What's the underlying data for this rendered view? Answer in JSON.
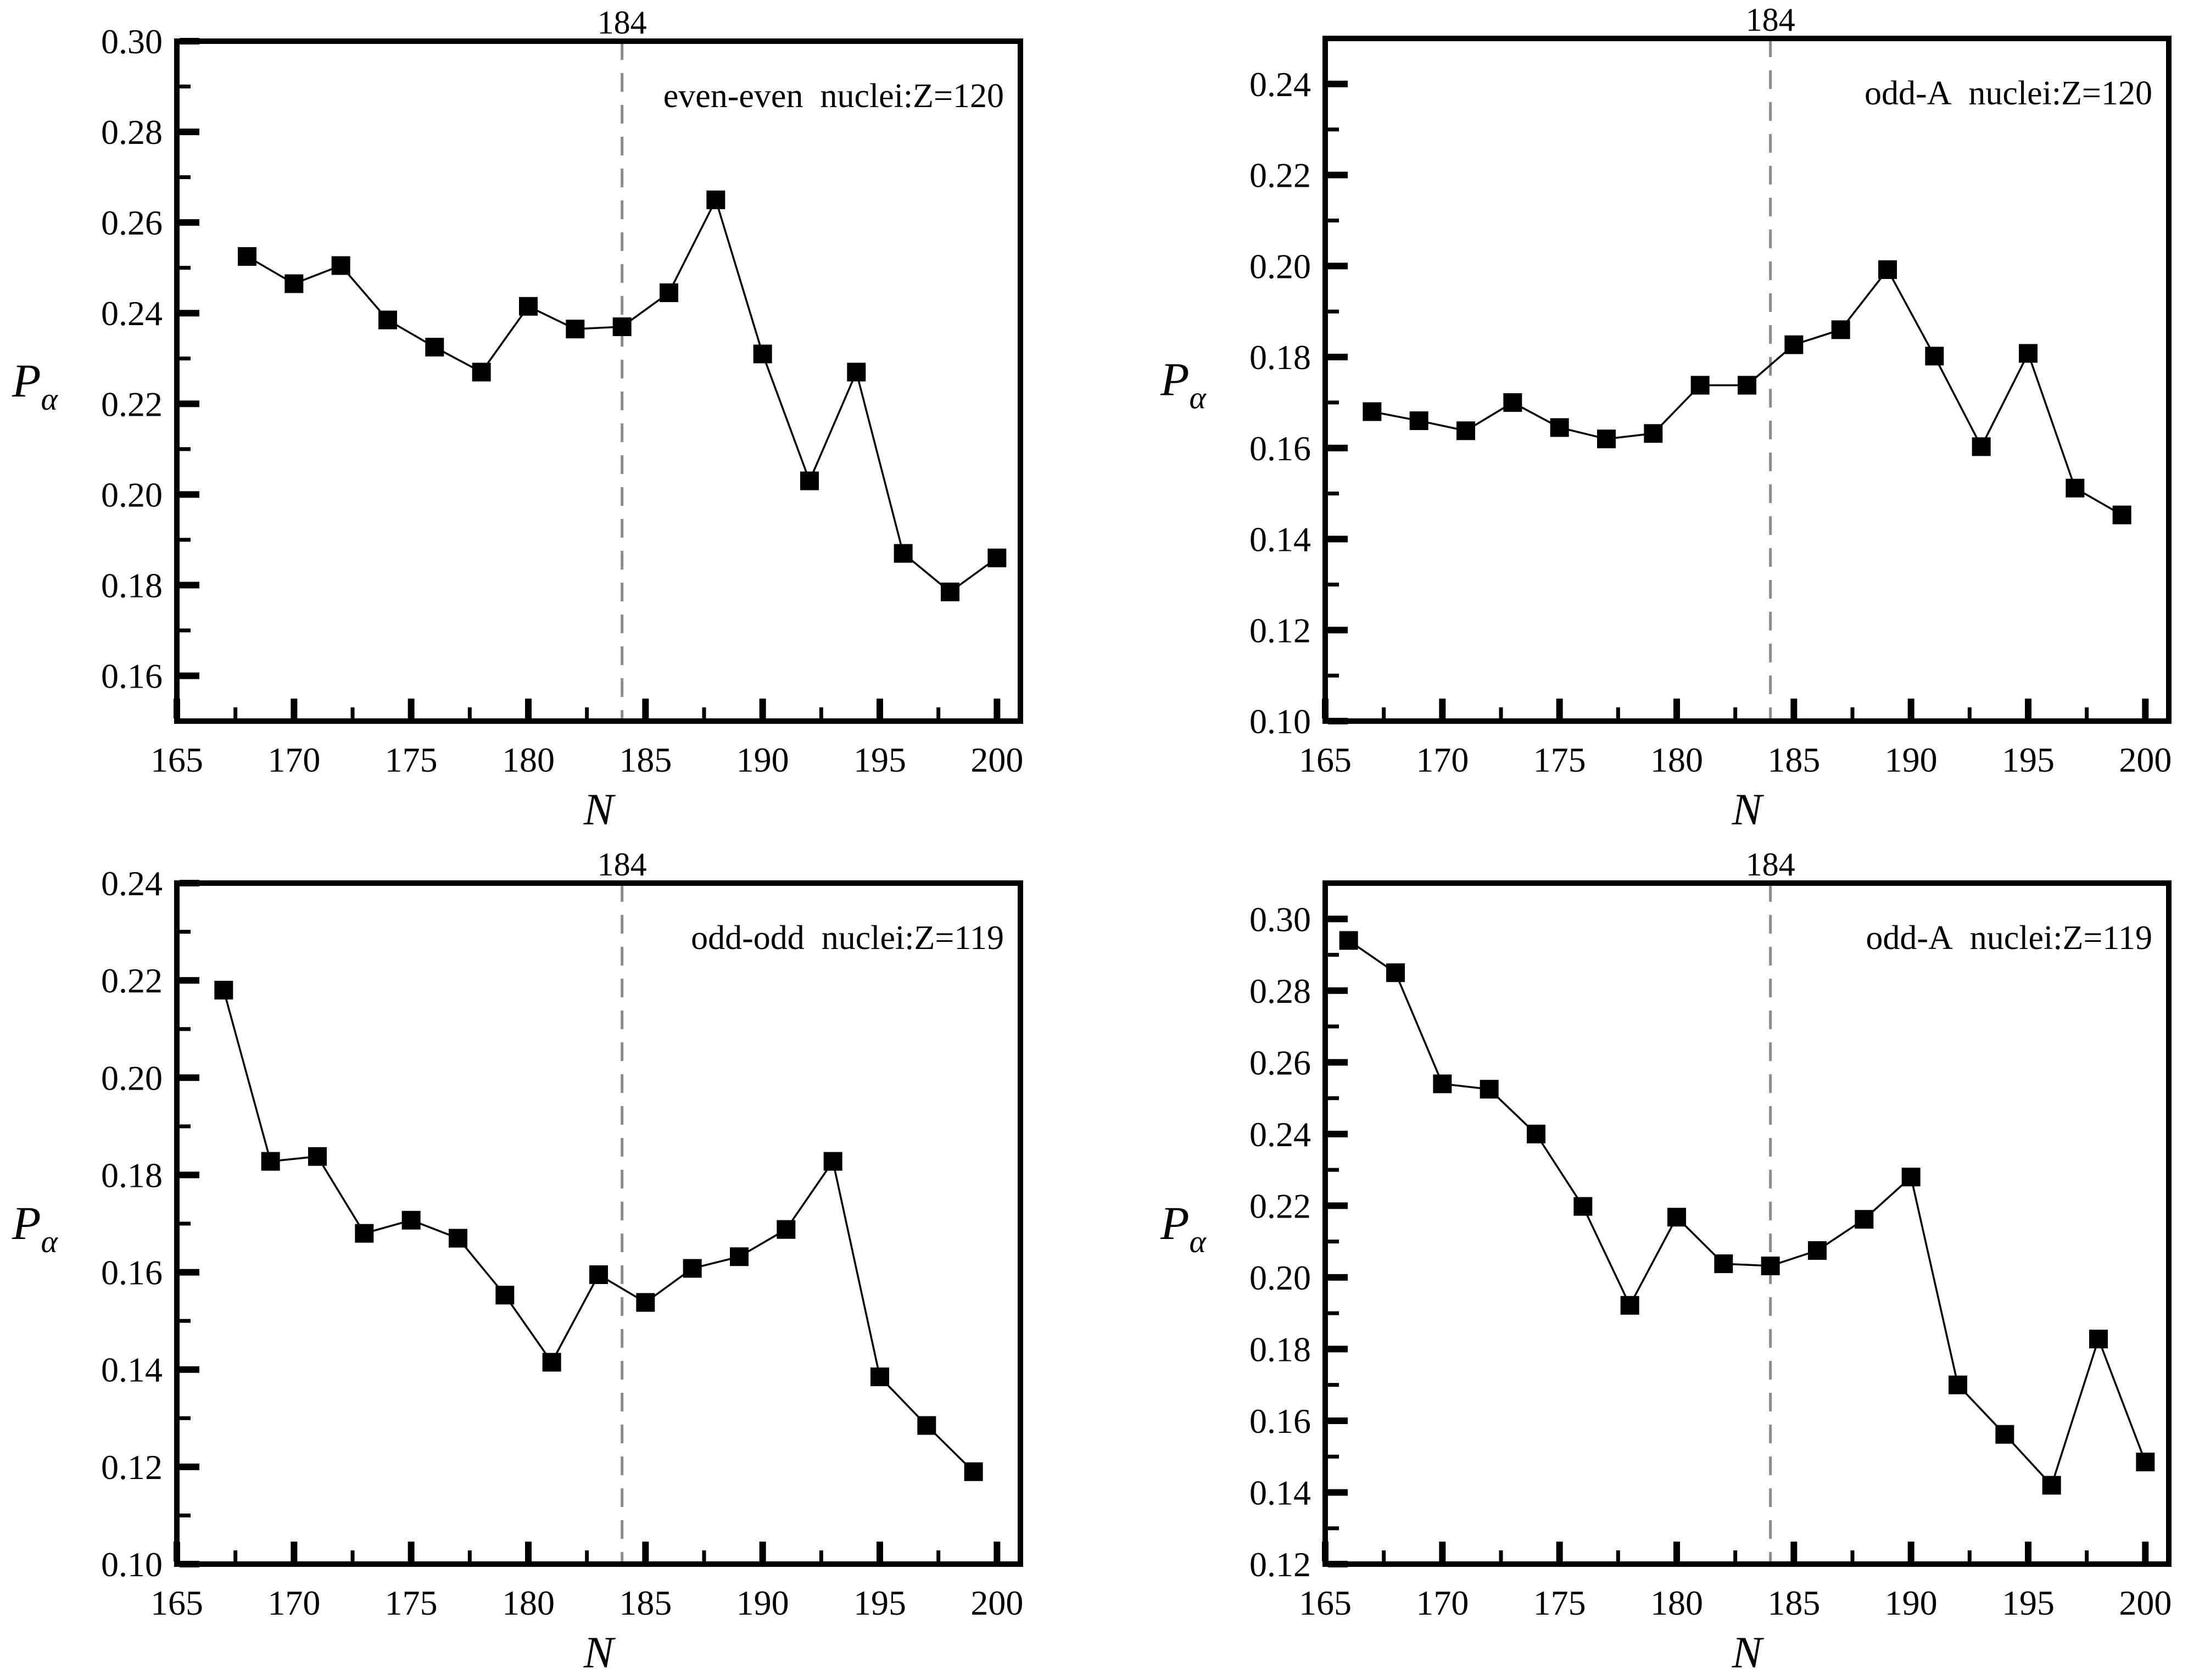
{
  "figure": {
    "background": "#ffffff",
    "line_color": "#000000",
    "marker_color": "#000000",
    "reference_line_color": "#8c8c8c",
    "x_axis_label": "N",
    "y_axis_label": {
      "main": "P",
      "sub": "α"
    },
    "reference_label": "184"
  },
  "chart_data": [
    {
      "type": "line",
      "position": "top-left",
      "title": "even-even  nuclei:Z=120",
      "xlabel": "N",
      "ylabel": "P_α",
      "legend": null,
      "grid": false,
      "marker": "filled-square",
      "reference_line_x": 184,
      "reference_label": "184",
      "xlim": [
        165,
        201
      ],
      "ylim": [
        0.15,
        0.3
      ],
      "x_major_ticks": [
        165,
        170,
        175,
        180,
        185,
        190,
        195,
        200
      ],
      "x_tick_labels": [
        "165",
        "170",
        "175",
        "180",
        "185",
        "190",
        "195",
        "200"
      ],
      "y_major_ticks": [
        0.16,
        0.18,
        0.2,
        0.22,
        0.24,
        0.26,
        0.28,
        0.3
      ],
      "y_tick_labels": [
        "0.16",
        "0.18",
        "0.20",
        "0.22",
        "0.24",
        "0.26",
        "0.28",
        "0.30"
      ],
      "x": [
        168,
        170,
        172,
        174,
        176,
        178,
        180,
        182,
        184,
        186,
        188,
        190,
        192,
        194,
        196,
        198,
        200
      ],
      "y": [
        0.2525,
        0.2465,
        0.2505,
        0.2385,
        0.2325,
        0.227,
        0.2415,
        0.2365,
        0.237,
        0.2445,
        0.265,
        0.231,
        0.203,
        0.227,
        0.187,
        0.1785,
        0.186
      ]
    },
    {
      "type": "line",
      "position": "top-right",
      "title": "odd-A  nuclei:Z=120",
      "xlabel": "N",
      "ylabel": "P_α",
      "legend": null,
      "grid": false,
      "marker": "filled-square",
      "reference_line_x": 184,
      "reference_label": "184",
      "xlim": [
        165,
        201
      ],
      "ylim": [
        0.1,
        0.25
      ],
      "x_major_ticks": [
        165,
        170,
        175,
        180,
        185,
        190,
        195,
        200
      ],
      "x_tick_labels": [
        "165",
        "170",
        "175",
        "180",
        "185",
        "190",
        "195",
        "200"
      ],
      "y_major_ticks": [
        0.1,
        0.12,
        0.14,
        0.16,
        0.18,
        0.2,
        0.22,
        0.24
      ],
      "y_tick_labels": [
        "0.10",
        "0.12",
        "0.14",
        "0.16",
        "0.18",
        "0.20",
        "0.22",
        "0.24"
      ],
      "x": [
        167,
        169,
        171,
        173,
        175,
        177,
        179,
        181,
        183,
        185,
        187,
        189,
        191,
        193,
        195,
        197,
        199
      ],
      "y": [
        0.168,
        0.166,
        0.1638,
        0.17,
        0.1645,
        0.162,
        0.1632,
        0.1738,
        0.1738,
        0.1827,
        0.186,
        0.1992,
        0.1802,
        0.1603,
        0.1808,
        0.1512,
        0.1453
      ]
    },
    {
      "type": "line",
      "position": "bottom-left",
      "title": "odd-odd  nuclei:Z=119",
      "xlabel": "N",
      "ylabel": "P_α",
      "legend": null,
      "grid": false,
      "marker": "filled-square",
      "reference_line_x": 184,
      "reference_label": "184",
      "xlim": [
        165,
        201
      ],
      "ylim": [
        0.1,
        0.24
      ],
      "x_major_ticks": [
        165,
        170,
        175,
        180,
        185,
        190,
        195,
        200
      ],
      "x_tick_labels": [
        "165",
        "170",
        "175",
        "180",
        "185",
        "190",
        "195",
        "200"
      ],
      "y_major_ticks": [
        0.1,
        0.12,
        0.14,
        0.16,
        0.18,
        0.2,
        0.22,
        0.24
      ],
      "y_tick_labels": [
        "0.10",
        "0.12",
        "0.14",
        "0.16",
        "0.18",
        "0.20",
        "0.22",
        "0.24"
      ],
      "x": [
        167,
        169,
        171,
        173,
        175,
        177,
        179,
        181,
        183,
        185,
        187,
        189,
        191,
        193,
        195,
        197,
        199
      ],
      "y": [
        0.218,
        0.1828,
        0.1838,
        0.168,
        0.1707,
        0.167,
        0.1553,
        0.1415,
        0.1595,
        0.1538,
        0.1608,
        0.1632,
        0.1688,
        0.1828,
        0.1385,
        0.1285,
        0.119
      ]
    },
    {
      "type": "line",
      "position": "bottom-right",
      "title": "odd-A  nuclei:Z=119",
      "xlabel": "N",
      "ylabel": "P_α",
      "legend": null,
      "grid": false,
      "marker": "filled-square",
      "reference_line_x": 184,
      "reference_label": "184",
      "xlim": [
        165,
        201
      ],
      "ylim": [
        0.12,
        0.31
      ],
      "x_major_ticks": [
        165,
        170,
        175,
        180,
        185,
        190,
        195,
        200
      ],
      "x_tick_labels": [
        "165",
        "170",
        "175",
        "180",
        "185",
        "190",
        "195",
        "200"
      ],
      "y_major_ticks": [
        0.12,
        0.14,
        0.16,
        0.18,
        0.2,
        0.22,
        0.24,
        0.26,
        0.28,
        0.3
      ],
      "y_tick_labels": [
        "0.12",
        "0.14",
        "0.16",
        "0.18",
        "0.20",
        "0.22",
        "0.24",
        "0.26",
        "0.28",
        "0.30"
      ],
      "x": [
        166,
        168,
        170,
        172,
        174,
        176,
        178,
        180,
        182,
        184,
        186,
        188,
        190,
        192,
        194,
        196,
        198,
        200
      ],
      "y": [
        0.294,
        0.285,
        0.254,
        0.2525,
        0.24,
        0.2198,
        0.1922,
        0.2168,
        0.2038,
        0.2032,
        0.2075,
        0.2162,
        0.228,
        0.17,
        0.1562,
        0.142,
        0.1828,
        0.1485
      ]
    }
  ]
}
